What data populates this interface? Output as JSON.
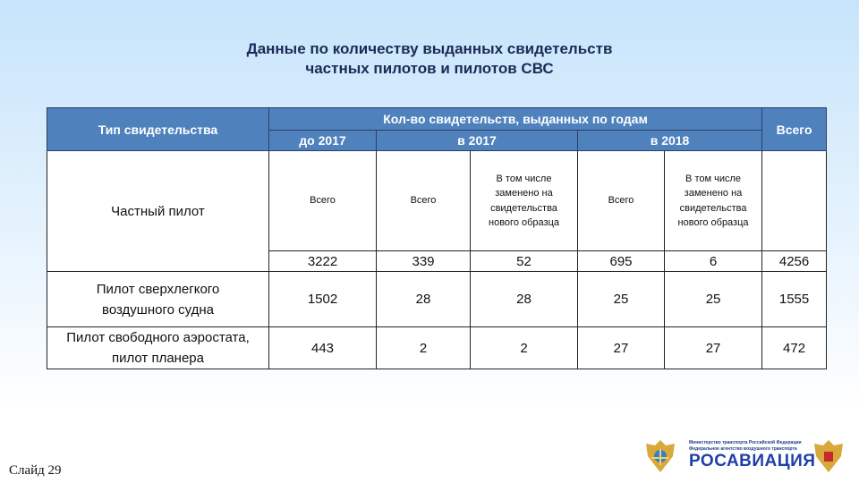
{
  "title": {
    "line1": "Данные по количеству выданных свидетельств",
    "line2": "частных пилотов и пилотов СВС"
  },
  "table": {
    "header": {
      "type": "Тип свидетельства",
      "group": "Кол-во свидетельств, выданных по годам",
      "total": "Всего",
      "periods": [
        "до 2017",
        "в 2017",
        "в 2018"
      ]
    },
    "subheaders": {
      "total": "Всего",
      "replaced": "В том числе заменено на свидетельства нового образца"
    },
    "rows": [
      {
        "type": "Частный пилот",
        "values": [
          "3222",
          "339",
          "52",
          "695",
          "6",
          "4256"
        ]
      },
      {
        "type": "Пилот сверхлегкого воздушного судна",
        "values": [
          "1502",
          "28",
          "28",
          "25",
          "25",
          "1555"
        ]
      },
      {
        "type": "Пилот свободного аэростата, пилот планера",
        "values": [
          "443",
          "2",
          "2",
          "27",
          "27",
          "472"
        ]
      }
    ]
  },
  "footer": {
    "slide": "Слайд 29",
    "logo": {
      "ministry": "Министерство транспорта Российской Федерации",
      "agency": "Федеральное агентство воздушного транспорта",
      "brand": "РОСАВИАЦИЯ"
    }
  },
  "colors": {
    "header_bg": "#4f81bd",
    "title": "#1b2a56",
    "brand": "#1f3fa8"
  }
}
